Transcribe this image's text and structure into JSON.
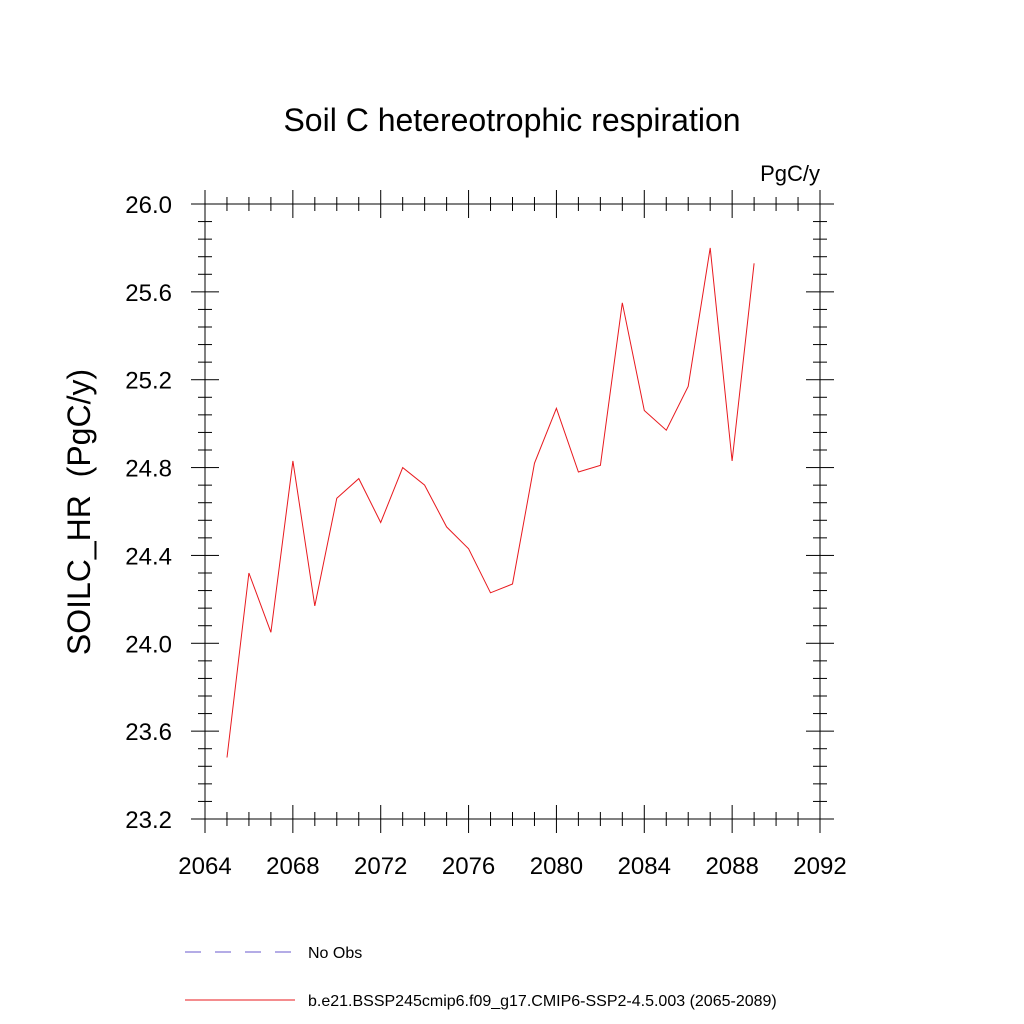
{
  "chart_data": {
    "type": "line",
    "title": "Soil C hetereotrophic respiration",
    "units_label": "PgC/y",
    "ylabel": "SOILC_HR  (PgC/y)",
    "xlabel": "",
    "xlim": [
      2064,
      2092
    ],
    "ylim": [
      23.2,
      26.0
    ],
    "x_ticks": [
      2064,
      2068,
      2072,
      2076,
      2080,
      2084,
      2088,
      2092
    ],
    "y_ticks": [
      "23.2",
      "23.6",
      "24.0",
      "24.4",
      "24.8",
      "25.2",
      "25.6",
      "26.0"
    ],
    "grid": false,
    "legend_position": "bottom",
    "series": [
      {
        "name": "b.e21.BSSP245cmip6.f09_g17.CMIP6-SSP2-4.5.003 (2065-2089)",
        "color": "#e8191e",
        "dash": "solid",
        "x": [
          2065,
          2066,
          2067,
          2068,
          2069,
          2070,
          2071,
          2072,
          2073,
          2074,
          2075,
          2076,
          2077,
          2078,
          2079,
          2080,
          2081,
          2082,
          2083,
          2084,
          2085,
          2086,
          2087,
          2088,
          2089
        ],
        "y": [
          23.48,
          24.32,
          24.05,
          24.83,
          24.17,
          24.66,
          24.75,
          24.55,
          24.8,
          24.72,
          24.53,
          24.43,
          24.23,
          24.27,
          24.82,
          25.07,
          24.78,
          24.81,
          25.55,
          25.06,
          24.97,
          25.17,
          25.8,
          24.83,
          25.73
        ]
      }
    ],
    "legend": [
      {
        "label": "No Obs",
        "color": "#6a5acd",
        "dash": "dashed"
      },
      {
        "label": "b.e21.BSSP245cmip6.f09_g17.CMIP6-SSP2-4.5.003 (2065-2089)",
        "color": "#e8191e",
        "dash": "solid"
      }
    ]
  }
}
